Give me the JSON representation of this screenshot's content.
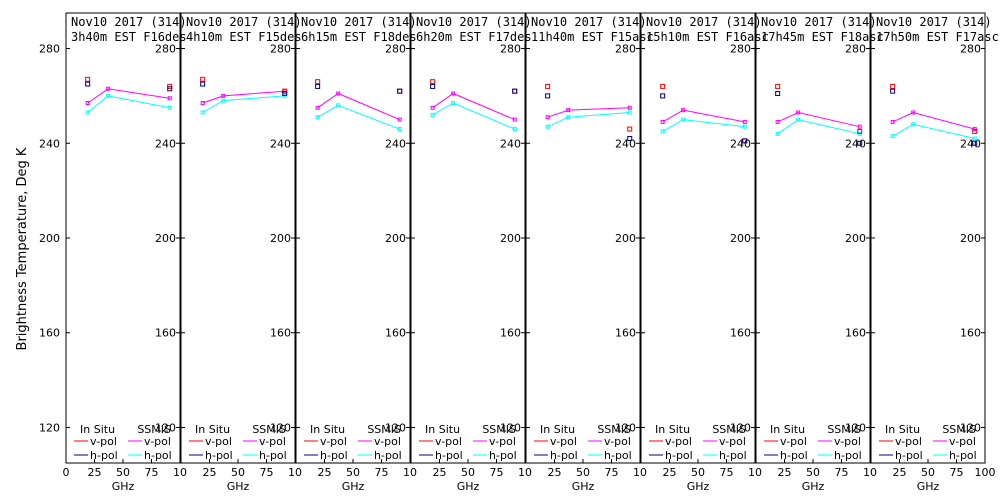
{
  "chart_data": {
    "type": "line",
    "ylabel": "Brightness Temperature, Deg K",
    "xlabel": "GHz",
    "xlim": [
      0,
      100
    ],
    "ylim": [
      105,
      295
    ],
    "yticks": [
      120,
      160,
      200,
      240,
      280
    ],
    "x_tick_labels": [
      "0",
      "25",
      "50",
      "75",
      "100"
    ],
    "x_tick_labels_last": [
      "0",
      "25",
      "50",
      "75",
      "100"
    ],
    "x_tick_labels_inner": [
      "0",
      "25",
      "50",
      "75",
      "10"
    ],
    "legend": {
      "insitu_header": "In Situ",
      "ssmis_header": "SSMIS",
      "vpol": "v-pol",
      "hpol": "h-pol"
    },
    "colors": {
      "insitu_v": "#ff0000",
      "insitu_h": "#000080",
      "ssmis_v": "#ff00ff",
      "ssmis_h": "#00ffff",
      "axis": "#000000"
    },
    "panels": [
      {
        "title1": "Nov10 2017 (314)",
        "title2": "3h40m  EST  F16des",
        "insitu_v": [
          [
            19,
            267
          ],
          [
            91,
            264
          ]
        ],
        "insitu_h": [
          [
            19,
            265
          ],
          [
            91,
            263
          ]
        ],
        "ssmis_v": [
          [
            19,
            257
          ],
          [
            37,
            263
          ],
          [
            91,
            259
          ]
        ],
        "ssmis_h": [
          [
            19,
            253
          ],
          [
            37,
            260
          ],
          [
            91,
            255
          ]
        ]
      },
      {
        "title1": "Nov10 2017 (314)",
        "title2": "4h10m  EST  F15des",
        "insitu_v": [
          [
            19,
            267
          ],
          [
            91,
            262
          ]
        ],
        "insitu_h": [
          [
            19,
            265
          ],
          [
            91,
            261
          ]
        ],
        "ssmis_v": [
          [
            19,
            257
          ],
          [
            37,
            260
          ],
          [
            91,
            262
          ]
        ],
        "ssmis_h": [
          [
            19,
            253
          ],
          [
            37,
            258
          ],
          [
            91,
            260
          ]
        ]
      },
      {
        "title1": "Nov10 2017 (314)",
        "title2": "6h15m  EST  F18des",
        "insitu_v": [
          [
            19,
            266
          ],
          [
            91,
            262
          ]
        ],
        "insitu_h": [
          [
            19,
            264
          ],
          [
            91,
            262
          ]
        ],
        "ssmis_v": [
          [
            19,
            255
          ],
          [
            37,
            261
          ],
          [
            91,
            250
          ]
        ],
        "ssmis_h": [
          [
            19,
            251
          ],
          [
            37,
            256
          ],
          [
            91,
            246
          ]
        ]
      },
      {
        "title1": "Nov10 2017 (314)",
        "title2": "6h20m  EST  F17des",
        "insitu_v": [
          [
            19,
            266
          ],
          [
            91,
            262
          ]
        ],
        "insitu_h": [
          [
            19,
            264
          ],
          [
            91,
            262
          ]
        ],
        "ssmis_v": [
          [
            19,
            255
          ],
          [
            37,
            261
          ],
          [
            91,
            250
          ]
        ],
        "ssmis_h": [
          [
            19,
            252
          ],
          [
            37,
            257
          ],
          [
            91,
            246
          ]
        ]
      },
      {
        "title1": "Nov10 2017 (314)",
        "title2": "11h40m  EST  F15asc",
        "insitu_v": [
          [
            19,
            264
          ],
          [
            91,
            246
          ]
        ],
        "insitu_h": [
          [
            19,
            260
          ],
          [
            91,
            242
          ]
        ],
        "ssmis_v": [
          [
            19,
            251
          ],
          [
            37,
            254
          ],
          [
            91,
            255
          ]
        ],
        "ssmis_h": [
          [
            19,
            247
          ],
          [
            37,
            251
          ],
          [
            91,
            253
          ]
        ]
      },
      {
        "title1": "Nov10 2017 (314)",
        "title2": "15h10m  EST  F16asc",
        "insitu_v": [
          [
            19,
            264
          ],
          [
            91,
            241
          ]
        ],
        "insitu_h": [
          [
            19,
            260
          ],
          [
            91,
            241
          ]
        ],
        "ssmis_v": [
          [
            19,
            249
          ],
          [
            37,
            254
          ],
          [
            91,
            249
          ]
        ],
        "ssmis_h": [
          [
            19,
            245
          ],
          [
            37,
            250
          ],
          [
            91,
            247
          ]
        ]
      },
      {
        "title1": "Nov10 2017 (314)",
        "title2": "17h45m  EST  F18asc",
        "insitu_v": [
          [
            19,
            264
          ],
          [
            91,
            245
          ]
        ],
        "insitu_h": [
          [
            19,
            261
          ],
          [
            91,
            240
          ]
        ],
        "ssmis_v": [
          [
            19,
            249
          ],
          [
            37,
            253
          ],
          [
            91,
            247
          ]
        ],
        "ssmis_h": [
          [
            19,
            244
          ],
          [
            37,
            250
          ],
          [
            91,
            244
          ]
        ]
      },
      {
        "title1": "Nov10 2017 (314)",
        "title2": "17h50m  EST  F17asc",
        "insitu_v": [
          [
            19,
            264
          ],
          [
            91,
            245
          ]
        ],
        "insitu_h": [
          [
            19,
            262
          ],
          [
            91,
            240
          ]
        ],
        "ssmis_v": [
          [
            19,
            249
          ],
          [
            37,
            253
          ],
          [
            91,
            246
          ]
        ],
        "ssmis_h": [
          [
            19,
            243
          ],
          [
            37,
            248
          ],
          [
            91,
            242
          ]
        ]
      }
    ]
  }
}
